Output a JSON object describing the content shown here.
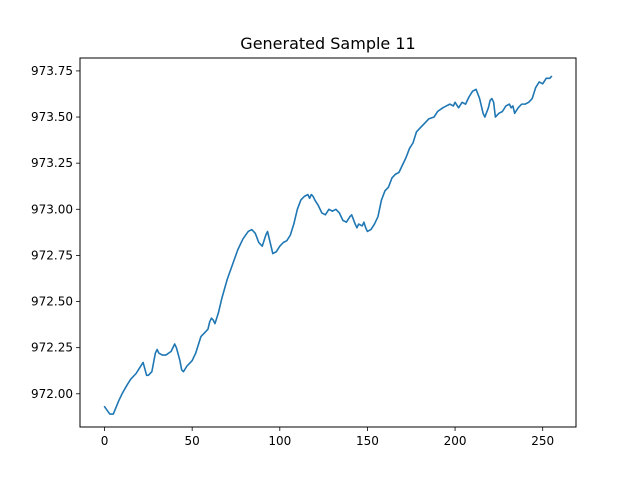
{
  "chart_data": {
    "type": "line",
    "title": "Generated Sample 11",
    "xlabel": "",
    "ylabel": "",
    "xlim": [
      -14,
      269
    ],
    "ylim": [
      971.82,
      973.82
    ],
    "xticks": [
      0,
      50,
      100,
      150,
      200,
      250
    ],
    "yticks": [
      972.0,
      972.25,
      972.5,
      972.75,
      973.0,
      973.25,
      973.5,
      973.75
    ],
    "ytick_labels": [
      "972.00",
      "972.25",
      "972.50",
      "972.75",
      "973.00",
      "973.25",
      "973.50",
      "973.75"
    ],
    "grid": false,
    "line_color": "#1f77b4",
    "series": [
      {
        "x": [
          0,
          3,
          5,
          8,
          10,
          13,
          15,
          18,
          20,
          22,
          24,
          25,
          27,
          29,
          30,
          31,
          33,
          35,
          38,
          40,
          41,
          43,
          44,
          45,
          47,
          49,
          50,
          52,
          54,
          55,
          57,
          59,
          60,
          61,
          62,
          63,
          65,
          67,
          70,
          73,
          76,
          79,
          82,
          84,
          86,
          88,
          90,
          92,
          93,
          94,
          96,
          98,
          100,
          102,
          104,
          106,
          108,
          110,
          112,
          114,
          116,
          117,
          118,
          119,
          120,
          122,
          124,
          126,
          128,
          130,
          132,
          134,
          136,
          138,
          140,
          141,
          143,
          144,
          145,
          147,
          148,
          149,
          150,
          152,
          154,
          156,
          158,
          160,
          162,
          164,
          166,
          168,
          170,
          172,
          174,
          176,
          178,
          180,
          182,
          185,
          188,
          190,
          193,
          195,
          197,
          199,
          200,
          202,
          204,
          206,
          208,
          210,
          212,
          214,
          216,
          217,
          219,
          220,
          221,
          222,
          223,
          225,
          227,
          229,
          231,
          232,
          233,
          234,
          236,
          238,
          240,
          242,
          244,
          246,
          248,
          250,
          252,
          254,
          255
        ],
        "y": [
          971.93,
          971.89,
          971.89,
          971.96,
          972.0,
          972.05,
          972.08,
          972.11,
          972.14,
          972.17,
          972.1,
          972.1,
          972.12,
          972.22,
          972.24,
          972.22,
          972.21,
          972.21,
          972.23,
          972.27,
          972.25,
          972.18,
          972.13,
          972.12,
          972.15,
          972.17,
          972.18,
          972.22,
          972.28,
          972.31,
          972.33,
          972.35,
          972.39,
          972.41,
          972.4,
          972.38,
          972.44,
          972.52,
          972.62,
          972.7,
          972.78,
          972.84,
          972.88,
          972.89,
          972.87,
          972.82,
          972.8,
          972.86,
          972.88,
          972.84,
          972.76,
          972.77,
          972.8,
          972.82,
          972.83,
          972.86,
          972.92,
          973.0,
          973.05,
          973.07,
          973.08,
          973.06,
          973.08,
          973.07,
          973.05,
          973.02,
          972.98,
          972.97,
          973.0,
          972.99,
          973.0,
          972.98,
          972.94,
          972.93,
          972.96,
          972.97,
          972.92,
          972.9,
          972.92,
          972.91,
          972.93,
          972.9,
          972.88,
          972.89,
          972.92,
          972.96,
          973.05,
          973.1,
          973.12,
          973.17,
          973.19,
          973.2,
          973.24,
          973.28,
          973.33,
          973.36,
          973.42,
          973.44,
          973.46,
          973.49,
          973.5,
          973.53,
          973.55,
          973.56,
          973.57,
          973.56,
          973.58,
          973.55,
          973.58,
          973.57,
          973.61,
          973.64,
          973.65,
          973.6,
          973.52,
          973.5,
          973.55,
          973.59,
          973.6,
          973.58,
          973.5,
          973.52,
          973.53,
          973.56,
          973.57,
          973.55,
          973.56,
          973.52,
          973.55,
          973.57,
          973.57,
          973.58,
          973.6,
          973.66,
          973.69,
          973.68,
          973.71,
          973.71,
          973.72
        ]
      }
    ]
  }
}
